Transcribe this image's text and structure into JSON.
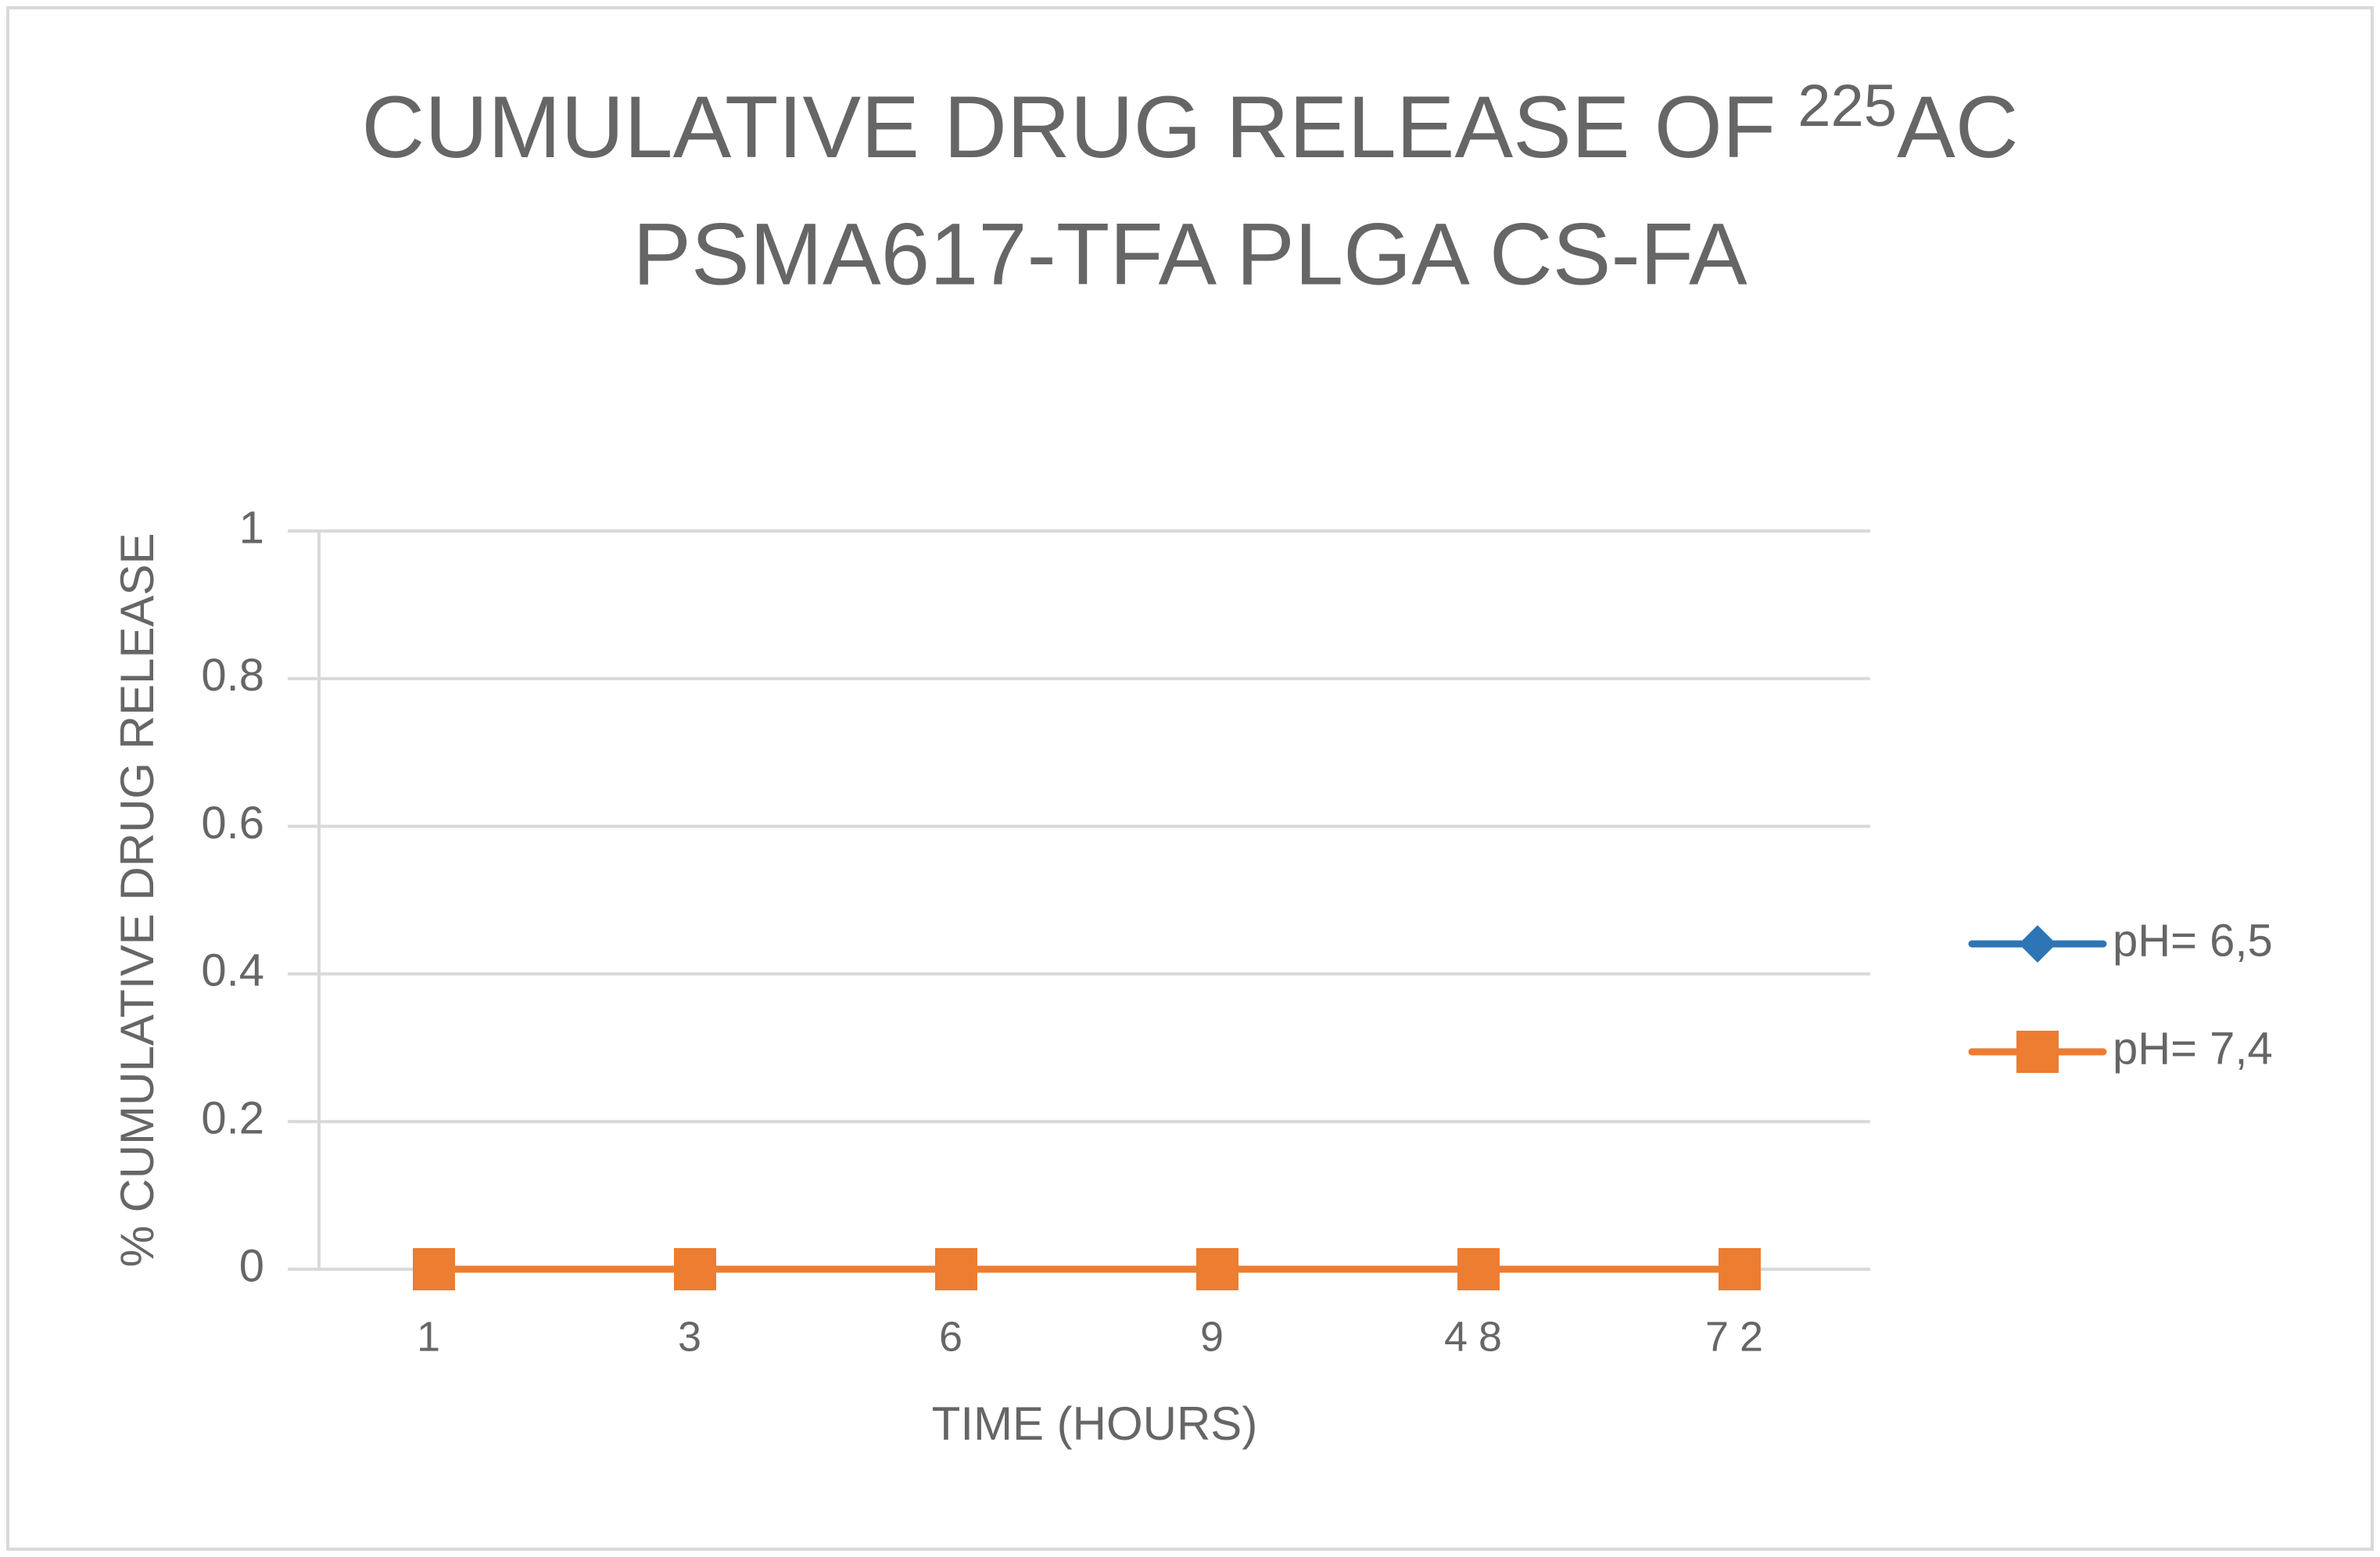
{
  "chart_data": {
    "type": "line",
    "title": {
      "text": "CUMULATIVE DRUG RELEASE OF",
      "superscript": "225",
      "text_after": "AC",
      "line2": "PSMA617-TFA PLGA CS-FA"
    },
    "x_label": "TIME (HOURS)",
    "y_label": "% CUMULATIVE DRUG RELEASE",
    "categories": [
      "1",
      "3",
      "6",
      "9",
      "48",
      "72"
    ],
    "series": [
      {
        "name": "pH= 6,5",
        "color": "#2e75b6",
        "marker": "diamond",
        "values": [
          0,
          0,
          0,
          0,
          0,
          0
        ]
      },
      {
        "name": "pH= 7,4",
        "color": "#ed7d31",
        "marker": "square",
        "values": [
          0,
          0,
          0,
          0,
          0,
          0
        ]
      }
    ],
    "ylim": [
      0,
      1
    ],
    "yticks": [
      0,
      0.2,
      0.4,
      0.6,
      0.8,
      1
    ],
    "grid": true,
    "legend": "right"
  }
}
